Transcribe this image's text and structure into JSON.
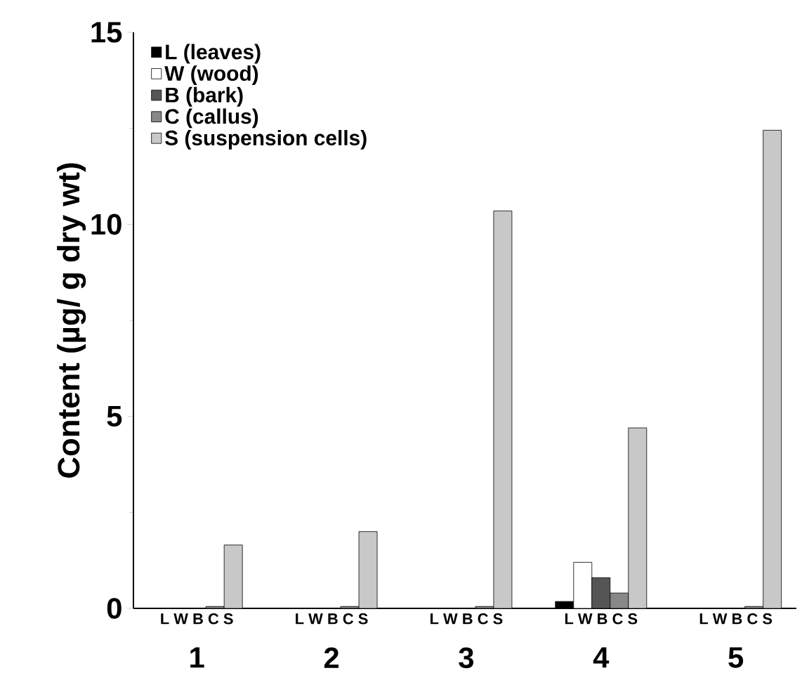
{
  "chart_data": {
    "type": "bar",
    "ylabel": "Content  (µg/ g dry wt)",
    "categories": [
      "1",
      "2",
      "3",
      "4",
      "5"
    ],
    "series": [
      {
        "name": "L  (leaves)",
        "color": "#000000",
        "values": [
          null,
          null,
          null,
          0.18,
          null
        ]
      },
      {
        "name": "W  (wood)",
        "color": "#ffffff",
        "values": [
          null,
          null,
          null,
          1.2,
          null
        ]
      },
      {
        "name": "B  (bark)",
        "color": "#555555",
        "values": [
          null,
          null,
          null,
          0.8,
          null
        ]
      },
      {
        "name": "C  (callus)",
        "color": "#888888",
        "values": [
          0.05,
          0.05,
          0.05,
          0.4,
          0.05
        ]
      },
      {
        "name": "S  (suspension cells)",
        "color": "#c8c8c8",
        "values": [
          1.65,
          2.0,
          10.35,
          4.7,
          12.45
        ]
      }
    ],
    "annotations": [
      "L W B C S",
      "L W B C S",
      "L W B C S",
      "L W B C S",
      "L W B C S"
    ],
    "ylim": [
      0,
      15
    ],
    "yticks": [
      0,
      5,
      10,
      15
    ],
    "grid": false,
    "legend": "top left"
  }
}
